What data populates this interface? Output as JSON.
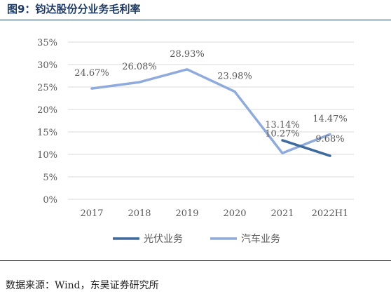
{
  "figure": {
    "title": "图9：钧达股份分业务毛利率",
    "source": "数据来源：Wind，东吴证券研究所"
  },
  "chart_data": {
    "type": "line",
    "x": [
      "2017",
      "2018",
      "2019",
      "2020",
      "2021",
      "2022H1"
    ],
    "series": [
      {
        "name": "光伏业务",
        "color": "#3f6a9e",
        "values": [
          null,
          null,
          null,
          null,
          13.14,
          9.68
        ],
        "labels": [
          "",
          "",
          "",
          "",
          "13.14%",
          "9.68%"
        ]
      },
      {
        "name": "汽车业务",
        "color": "#8faadc",
        "values": [
          24.67,
          26.08,
          28.93,
          23.98,
          10.27,
          14.47
        ],
        "labels": [
          "24.67%",
          "26.08%",
          "28.93%",
          "23.98%",
          "10.27%",
          "14.47%"
        ]
      }
    ],
    "ylim": [
      0,
      35
    ],
    "yticks": [
      "0%",
      "5%",
      "10%",
      "15%",
      "20%",
      "25%",
      "30%",
      "35%"
    ],
    "grid": true,
    "legend": "bottom"
  }
}
